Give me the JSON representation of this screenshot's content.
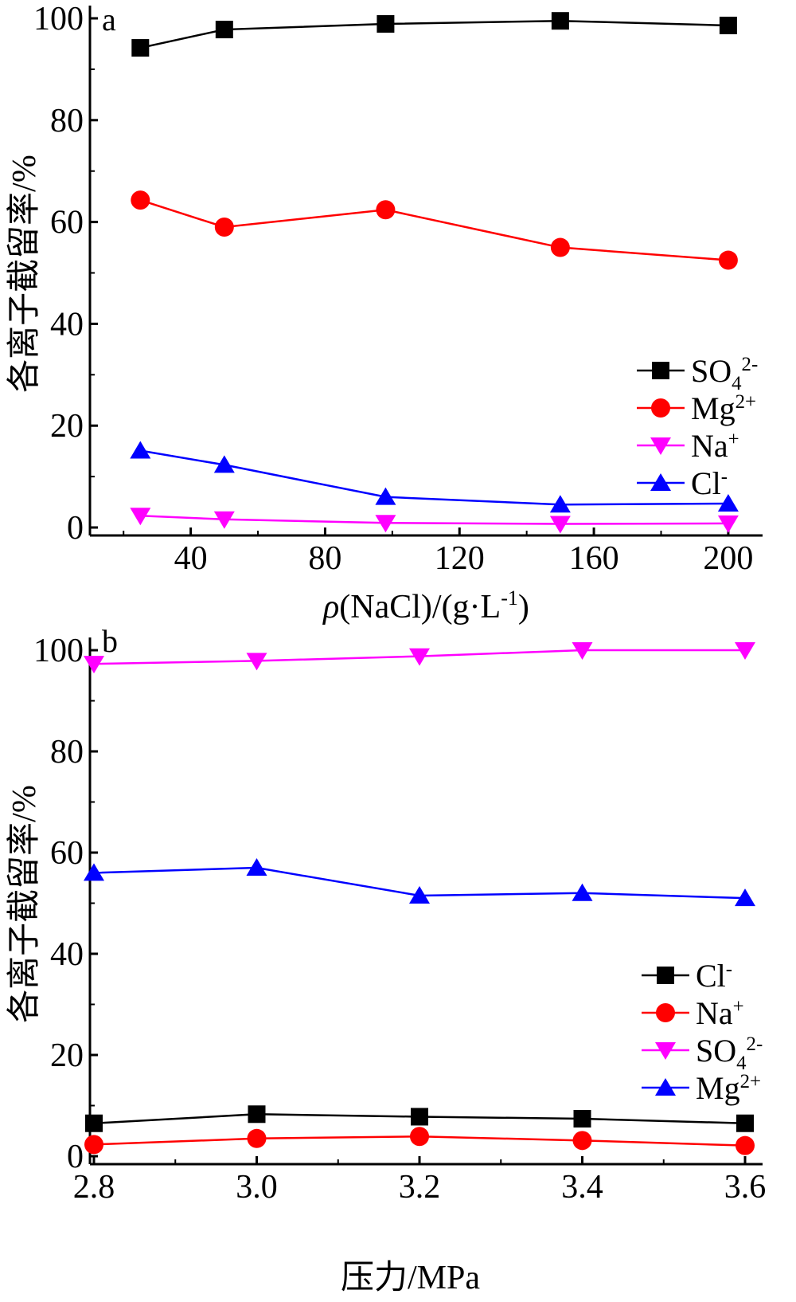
{
  "chart_data": [
    {
      "type": "line",
      "panel_label": "a",
      "xlabel": "ρ(NaCl)/(g·L⁻¹)",
      "ylabel": "各离子截留率/%",
      "xlim": [
        10,
        205
      ],
      "ylim": [
        0,
        100
      ],
      "xticks": [
        40,
        80,
        120,
        160,
        200
      ],
      "yticks": [
        0,
        20,
        40,
        60,
        80,
        100
      ],
      "x": [
        25,
        50,
        98,
        150,
        200
      ],
      "legend_position": "right",
      "series": [
        {
          "name": "SO₄²⁻",
          "marker": "square",
          "color": "#000000",
          "values": [
            94.2,
            97.8,
            98.9,
            99.5,
            98.6
          ]
        },
        {
          "name": "Mg²⁺",
          "marker": "circle",
          "color": "#ff0000",
          "values": [
            64.3,
            59.0,
            62.4,
            55.0,
            52.5
          ]
        },
        {
          "name": "Na⁺",
          "marker": "triangle-down",
          "color": "#ff00ff",
          "values": [
            2.3,
            1.6,
            0.9,
            0.7,
            0.8
          ]
        },
        {
          "name": "Cl⁻",
          "marker": "triangle-up",
          "color": "#0000ff",
          "values": [
            15.1,
            12.3,
            6.0,
            4.5,
            4.7
          ]
        }
      ]
    },
    {
      "type": "line",
      "panel_label": "b",
      "xlabel": "压力/MPa",
      "ylabel": "各离子截留率/%",
      "xlim": [
        2.8,
        3.6
      ],
      "ylim": [
        0,
        100
      ],
      "xticks": [
        "2.8",
        "3.0",
        "3.2",
        "3.4",
        "3.6"
      ],
      "yticks": [
        0,
        20,
        40,
        60,
        80,
        100
      ],
      "x": [
        2.8,
        3.0,
        3.2,
        3.4,
        3.6
      ],
      "legend_position": "right",
      "series": [
        {
          "name": "Cl⁻",
          "marker": "square",
          "color": "#000000",
          "values": [
            6.5,
            8.3,
            7.8,
            7.4,
            6.5
          ]
        },
        {
          "name": "Na⁺",
          "marker": "circle",
          "color": "#ff0000",
          "values": [
            2.3,
            3.5,
            3.9,
            3.1,
            2.1
          ]
        },
        {
          "name": "SO₄²⁻",
          "marker": "triangle-down",
          "color": "#ff00ff",
          "values": [
            97.3,
            97.9,
            98.8,
            100.0,
            100.0
          ]
        },
        {
          "name": "Mg²⁺",
          "marker": "triangle-up",
          "color": "#0000ff",
          "values": [
            56.0,
            57.0,
            51.5,
            52.0,
            51.0
          ]
        }
      ]
    }
  ]
}
